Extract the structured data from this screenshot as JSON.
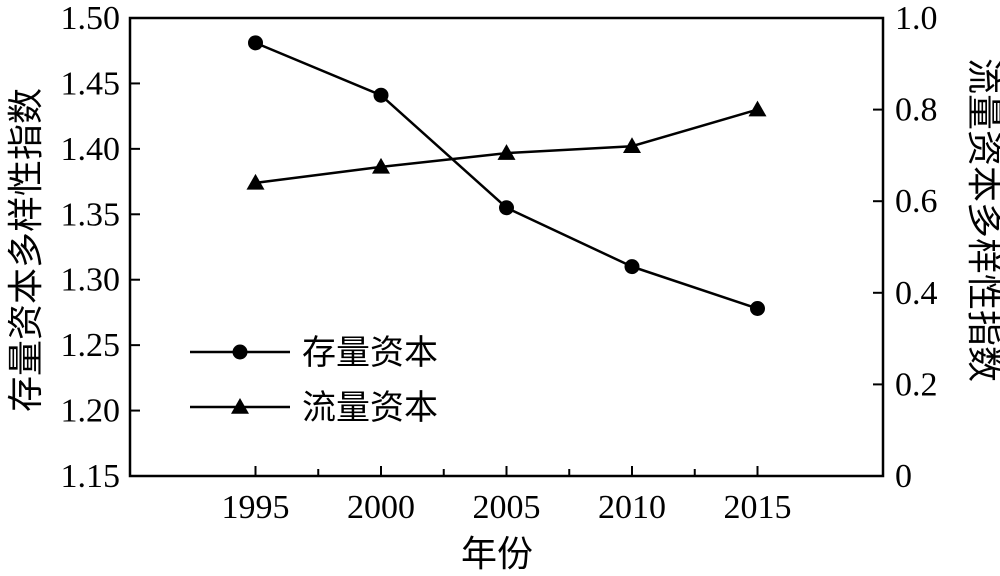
{
  "chart_data": {
    "type": "line",
    "xlabel": "年份",
    "ylabel_left": "存量资本多样性指数",
    "ylabel_right": "流量资本多样性指数",
    "x": [
      1995,
      2000,
      2005,
      2010,
      2015
    ],
    "x_ticks": [
      "1995",
      "2000",
      "2005",
      "2010",
      "2015"
    ],
    "xlim": [
      1990,
      2020
    ],
    "ylim_left": [
      1.15,
      1.5
    ],
    "ylim_right": [
      0,
      1.0
    ],
    "y_ticks_left": [
      "1.15",
      "1.20",
      "1.25",
      "1.30",
      "1.35",
      "1.40",
      "1.45",
      "1.50"
    ],
    "y_ticks_right": [
      "0",
      "0.2",
      "0.4",
      "0.6",
      "0.8",
      "1.0"
    ],
    "legend_position": "left-middle",
    "grid": false,
    "series": [
      {
        "name": "存量资本",
        "axis": "left",
        "marker": "circle",
        "values": [
          1.481,
          1.441,
          1.355,
          1.31,
          1.278
        ]
      },
      {
        "name": "流量资本",
        "axis": "right",
        "marker": "triangle",
        "values": [
          0.64,
          0.675,
          0.705,
          0.72,
          0.8
        ]
      }
    ]
  }
}
